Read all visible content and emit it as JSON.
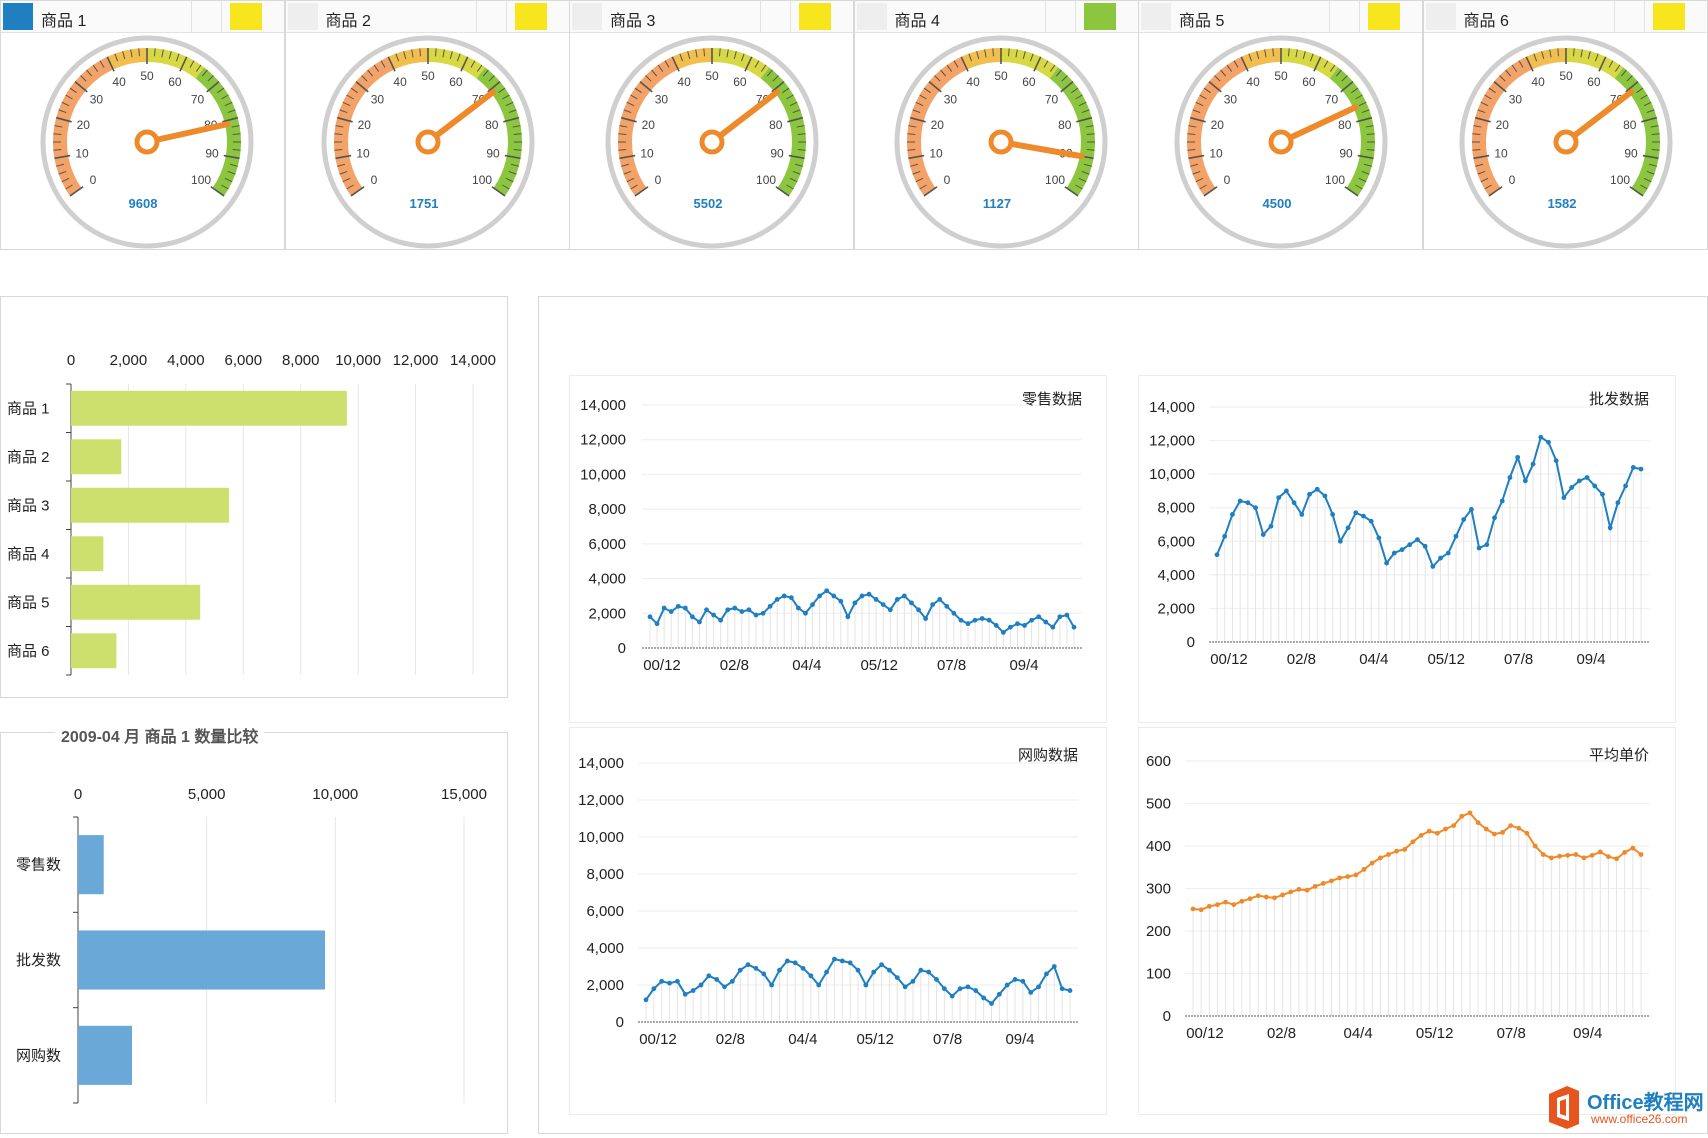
{
  "colors": {
    "accent_blue": "#1f7fc1",
    "gauge_orange": "#ee8a2a",
    "gauge_green": "#8cc63f",
    "gauge_yellow": "#f7e51e",
    "bar_green": "#cde06e",
    "bar_blue": "#6aa8d8",
    "line_blue": "#1f7fc1",
    "line_orange": "#ee8a2a"
  },
  "gauges": [
    {
      "name": "商品 1",
      "readout": "9608",
      "needle": 81,
      "swatch": "#1f7fc1",
      "flag": "#f7e51e"
    },
    {
      "name": "商品 2",
      "readout": "1751",
      "needle": 71,
      "swatch": "#eeeeee",
      "flag": "#f7e51e"
    },
    {
      "name": "商品 3",
      "readout": "5502",
      "needle": 71,
      "swatch": "#eeeeee",
      "flag": "#f7e51e"
    },
    {
      "name": "商品 4",
      "readout": "1127",
      "needle": 90,
      "swatch": "#eeeeee",
      "flag": "#8cc63f"
    },
    {
      "name": "商品 5",
      "readout": "4500",
      "needle": 76,
      "swatch": "#eeeeee",
      "flag": "#f7e51e"
    },
    {
      "name": "商品 6",
      "readout": "1582",
      "needle": 71,
      "swatch": "#eeeeee",
      "flag": "#f7e51e"
    }
  ],
  "gauge_ticks": [
    "0",
    "10",
    "20",
    "30",
    "40",
    "50",
    "60",
    "70",
    "80",
    "90",
    "100"
  ],
  "second_chart_title": "2009-04 月 商品 1 数量比较",
  "logo": {
    "brand": "Office教程网",
    "url": "www.office26.com"
  },
  "chart_data": [
    {
      "type": "bar",
      "orientation": "horizontal",
      "categories": [
        "商品 1",
        "商品 2",
        "商品 3",
        "商品 4",
        "商品 5",
        "商品 6"
      ],
      "values": [
        9608,
        1751,
        5502,
        1127,
        4500,
        1582
      ],
      "xlim": [
        0,
        14000
      ],
      "xticks": [
        "0",
        "2,000",
        "4,000",
        "6,000",
        "8,000",
        "10,000",
        "12,000",
        "14,000"
      ],
      "grid": true
    },
    {
      "type": "bar",
      "orientation": "horizontal",
      "title": "2009-04 月 商品 1 数量比较",
      "categories": [
        "零售数",
        "批发数",
        "网购数"
      ],
      "values": [
        1000,
        9600,
        2100
      ],
      "xlim": [
        0,
        15000
      ],
      "xticks": [
        "0",
        "5,000",
        "10,000",
        "15,000"
      ],
      "grid": true
    },
    {
      "type": "line",
      "title": "零售数据",
      "x_labels": [
        "00/12",
        "02/8",
        "04/4",
        "05/12",
        "07/8",
        "09/4"
      ],
      "ylim": [
        0,
        14000
      ],
      "yticks": [
        "0",
        "2,000",
        "4,000",
        "6,000",
        "8,000",
        "10,000",
        "12,000",
        "14,000"
      ],
      "values": [
        1800,
        1400,
        2300,
        2100,
        2400,
        2300,
        1800,
        1500,
        2200,
        1900,
        1600,
        2200,
        2300,
        2100,
        2200,
        1900,
        2000,
        2400,
        2800,
        3000,
        2900,
        2300,
        2000,
        2500,
        3000,
        3300,
        3000,
        2700,
        1800,
        2600,
        3000,
        3100,
        2800,
        2500,
        2200,
        2800,
        3000,
        2600,
        2200,
        1700,
        2500,
        2800,
        2400,
        2000,
        1600,
        1400,
        1600,
        1700,
        1600,
        1300,
        900,
        1200,
        1400,
        1300,
        1600,
        1800,
        1500,
        1200,
        1800,
        1900,
        1200
      ]
    },
    {
      "type": "line",
      "title": "批发数据",
      "x_labels": [
        "00/12",
        "02/8",
        "04/4",
        "05/12",
        "07/8",
        "09/4"
      ],
      "ylim": [
        0,
        14000
      ],
      "yticks": [
        "0",
        "2,000",
        "4,000",
        "6,000",
        "8,000",
        "10,000",
        "12,000",
        "14,000"
      ],
      "values": [
        5200,
        6300,
        7600,
        8400,
        8300,
        8000,
        6400,
        6900,
        8600,
        9000,
        8300,
        7600,
        8800,
        9100,
        8700,
        7600,
        6000,
        6800,
        7700,
        7500,
        7200,
        6200,
        4700,
        5300,
        5500,
        5800,
        6100,
        5700,
        4500,
        5000,
        5300,
        6300,
        7300,
        7900,
        5600,
        5800,
        7400,
        8400,
        9800,
        11000,
        9600,
        10600,
        12200,
        11900,
        10800,
        8600,
        9200,
        9600,
        9800,
        9300,
        8800,
        6800,
        8300,
        9300,
        10400,
        10300
      ]
    },
    {
      "type": "line",
      "title": "网购数据",
      "x_labels": [
        "00/12",
        "02/8",
        "04/4",
        "05/12",
        "07/8",
        "09/4"
      ],
      "ylim": [
        0,
        14000
      ],
      "yticks": [
        "0",
        "2,000",
        "4,000",
        "6,000",
        "8,000",
        "10,000",
        "12,000",
        "14,000"
      ],
      "values": [
        1200,
        1800,
        2200,
        2100,
        2200,
        1500,
        1700,
        2000,
        2500,
        2300,
        1900,
        2200,
        2800,
        3100,
        2900,
        2600,
        2000,
        2800,
        3300,
        3200,
        2900,
        2500,
        2000,
        2700,
        3400,
        3300,
        3200,
        2800,
        2000,
        2700,
        3100,
        2800,
        2400,
        1900,
        2200,
        2800,
        2700,
        2300,
        1800,
        1400,
        1800,
        1900,
        1700,
        1300,
        1000,
        1500,
        2000,
        2300,
        2200,
        1600,
        1900,
        2600,
        3000,
        1800,
        1700
      ]
    },
    {
      "type": "line",
      "title": "平均单价",
      "x_labels": [
        "00/12",
        "02/8",
        "04/4",
        "05/12",
        "07/8",
        "09/4"
      ],
      "ylim": [
        0,
        600
      ],
      "yticks": [
        "0",
        "100",
        "200",
        "300",
        "400",
        "500",
        "600"
      ],
      "values": [
        252,
        250,
        258,
        262,
        268,
        262,
        270,
        276,
        283,
        280,
        278,
        285,
        292,
        298,
        296,
        305,
        312,
        318,
        325,
        328,
        332,
        345,
        360,
        372,
        380,
        388,
        392,
        410,
        425,
        435,
        430,
        440,
        448,
        470,
        478,
        455,
        440,
        428,
        432,
        448,
        442,
        430,
        400,
        380,
        372,
        376,
        378,
        380,
        372,
        378,
        386,
        375,
        370,
        385,
        395,
        380
      ]
    }
  ]
}
